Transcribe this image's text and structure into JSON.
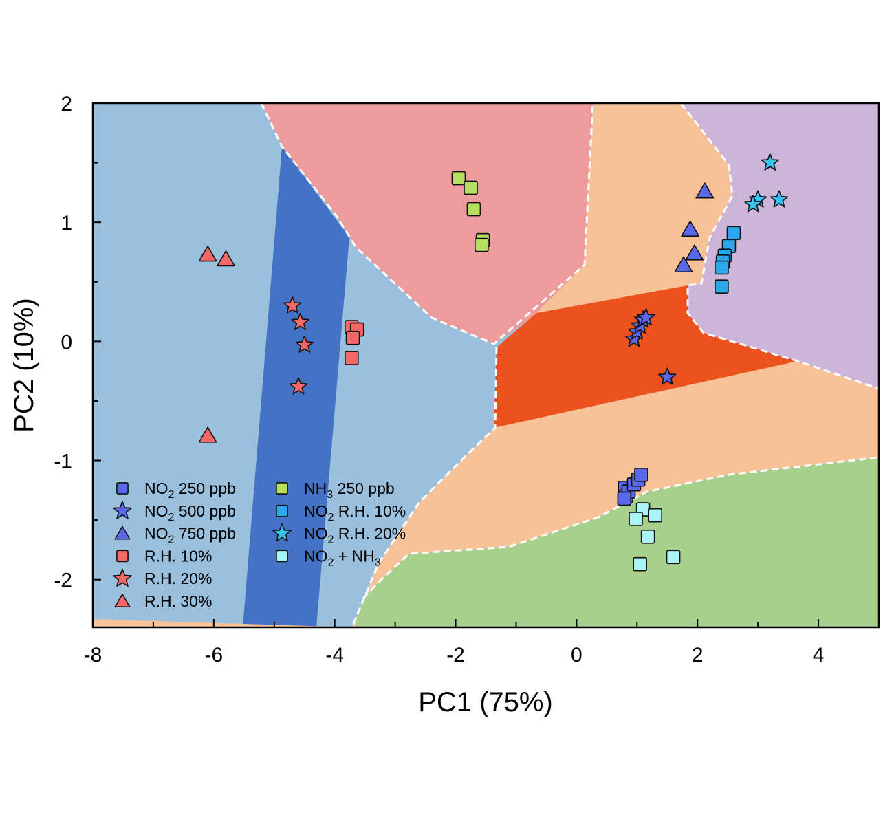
{
  "chart_data": {
    "type": "scatter",
    "title": "",
    "xlabel": "PC1 (75%)",
    "ylabel": "PC2 (10%)",
    "xlim": [
      -8,
      5
    ],
    "ylim": [
      -2.4,
      2
    ],
    "xticks": [
      -8,
      -6,
      -4,
      -2,
      0,
      2,
      4
    ],
    "yticks": [
      2,
      1,
      0,
      -1,
      -2
    ],
    "grid": false,
    "legend_position": "bottom-left",
    "background_regions": [
      {
        "class": "R.H. 10%",
        "color": "#9bc0dd"
      },
      {
        "class": "R.H. 20%",
        "color": "#4472c4"
      },
      {
        "class": "NH3 250 ppb",
        "color": "#ec9c9c"
      },
      {
        "class": "NO2 750 ppb",
        "color": "#f8c298"
      },
      {
        "class": "NO2 500 ppb",
        "color": "#eb521e"
      },
      {
        "class": "NO2 R.H. 20%",
        "color": "#ccb5d9"
      },
      {
        "class": "NO2 + NH3",
        "color": "#a8d08d"
      }
    ],
    "series": [
      {
        "name": "NO2 250 ppb",
        "label_main": "NO",
        "label_sub": "2",
        "label_rest": " 250 ppb",
        "marker": "square",
        "color": "#5868e8",
        "x": [
          0.8,
          0.82,
          0.86,
          0.95,
          1.02,
          1.07,
          0.79
        ],
        "y": [
          -1.23,
          -1.3,
          -1.26,
          -1.2,
          -1.16,
          -1.12,
          -1.32
        ]
      },
      {
        "name": "NO2 500 ppb",
        "label_main": "NO",
        "label_sub": "2",
        "label_rest": " 500 ppb",
        "marker": "star",
        "color": "#5868e8",
        "x": [
          0.95,
          1.0,
          1.05,
          1.1,
          1.15,
          1.5
        ],
        "y": [
          0.02,
          0.08,
          0.13,
          0.18,
          0.2,
          -0.3
        ]
      },
      {
        "name": "NO2 750 ppb",
        "label_main": "NO",
        "label_sub": "2",
        "label_rest": " 750 ppb",
        "marker": "triangle",
        "color": "#5868e8",
        "x": [
          2.12,
          1.88,
          1.95,
          1.77
        ],
        "y": [
          1.26,
          0.94,
          0.74,
          0.64
        ]
      },
      {
        "name": "R.H. 10%",
        "label_main": "R.H. 10%",
        "label_sub": "",
        "label_rest": "",
        "marker": "square",
        "color": "#f46868",
        "x": [
          -3.72,
          -3.63,
          -3.7,
          -3.72
        ],
        "y": [
          0.12,
          0.1,
          0.03,
          -0.14
        ]
      },
      {
        "name": "R.H. 20%",
        "label_main": "R.H. 20%",
        "label_sub": "",
        "label_rest": "",
        "marker": "star",
        "color": "#f46868",
        "x": [
          -4.7,
          -4.57,
          -4.5,
          -4.6
        ],
        "y": [
          0.3,
          0.16,
          -0.03,
          -0.38
        ]
      },
      {
        "name": "R.H. 30%",
        "label_main": "R.H. 30%",
        "label_sub": "",
        "label_rest": "",
        "marker": "triangle",
        "color": "#f46868",
        "x": [
          -6.1,
          -5.8,
          -6.1
        ],
        "y": [
          0.73,
          0.69,
          -0.79
        ]
      },
      {
        "name": "NH3 250 ppb",
        "label_main": "NH",
        "label_sub": "3",
        "label_rest": " 250 ppb",
        "marker": "square",
        "color": "#b5e05e",
        "x": [
          -1.95,
          -1.75,
          -1.7,
          -1.55,
          -1.57
        ],
        "y": [
          1.37,
          1.29,
          1.11,
          0.85,
          0.81
        ]
      },
      {
        "name": "NO2 R.H. 10%",
        "label_main": "NO",
        "label_sub": "2",
        "label_rest": " R.H. 10%",
        "marker": "square",
        "color": "#2ea6ee",
        "x": [
          2.6,
          2.52,
          2.45,
          2.42,
          2.4,
          2.4
        ],
        "y": [
          0.91,
          0.8,
          0.72,
          0.67,
          0.62,
          0.46
        ]
      },
      {
        "name": "NO2 R.H. 20%",
        "label_main": "NO",
        "label_sub": "2",
        "label_rest": " R.H. 20%",
        "marker": "star",
        "color": "#38c4f2",
        "x": [
          3.2,
          3.35,
          3.0,
          2.92
        ],
        "y": [
          1.5,
          1.19,
          1.19,
          1.15
        ]
      },
      {
        "name": "NO2 + NH3",
        "label_main": "NO",
        "label_sub": "2",
        "label_rest": " + NH",
        "label_sub2": "3",
        "marker": "square",
        "color": "#aaf4f6",
        "x": [
          1.1,
          1.3,
          0.98,
          1.18,
          1.6,
          1.05
        ],
        "y": [
          -1.41,
          -1.46,
          -1.49,
          -1.64,
          -1.81,
          -1.87
        ]
      }
    ]
  }
}
